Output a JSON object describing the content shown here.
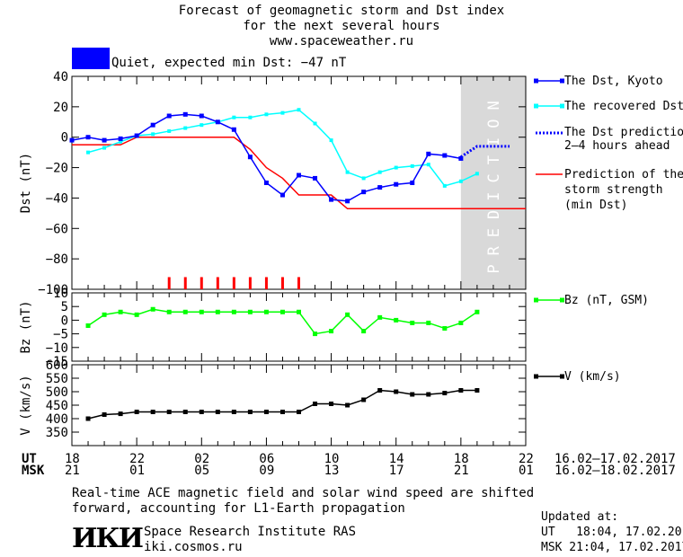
{
  "header": {
    "line1": "Forecast of geomagnetic storm and Dst index",
    "line2": "for the next several hours",
    "line3": "www.spaceweather.ru"
  },
  "status": {
    "text": "Quiet, expected min Dst: −47 nT",
    "color": "#0000FF"
  },
  "prediction_label": "PREDICTION",
  "time_axis": {
    "ut_label": "UT",
    "msk_label": "MSK",
    "ut_ticks": [
      "18",
      "22",
      "02",
      "06",
      "10",
      "14",
      "18",
      "22"
    ],
    "msk_ticks": [
      "21",
      "01",
      "05",
      "09",
      "13",
      "17",
      "21",
      "01"
    ],
    "ut_range": "16.02–17.02.2017",
    "msk_range": "16.02–18.02.2017"
  },
  "legend": {
    "dst_kyoto": "The Dst, Kyoto",
    "dst_recovered": "The recovered Dst",
    "dst_prediction_1": "The Dst prediction",
    "dst_prediction_2": "2–4 hours ahead",
    "storm_1": "Prediction of the",
    "storm_2": "storm strength",
    "storm_3": "(min Dst)",
    "bz": "Bz (nT, GSM)",
    "v": "V (km/s)"
  },
  "footer": {
    "note_1": "Real-time ACE magnetic field and solar wind speed are shifted",
    "note_2": "forward, accounting for L1-Earth propagation",
    "logo": "ИКИ",
    "institute": "Space Research Institute RAS",
    "site": "iki.cosmos.ru",
    "updated_label": "Updated at:",
    "updated_ut": "UT   18:04, 17.02.2017",
    "updated_msk": "MSK 21:04, 17.02.2017"
  },
  "colors": {
    "dst_kyoto": "#0000FF",
    "dst_recovered": "#00FFFF",
    "dst_prediction": "#0000FF",
    "storm": "#FF0000",
    "bz": "#00FF00",
    "v": "#000000",
    "prediction_band": "#D9D9D9"
  },
  "chart_data": [
    {
      "type": "line",
      "ylabel": "Dst (nT)",
      "x_unit": "hours since 18 UT 16.02.2017",
      "xlim": [
        0,
        28
      ],
      "ylim": [
        -100,
        40
      ],
      "yticks": [
        -100,
        -80,
        -60,
        -40,
        -20,
        0,
        20,
        40
      ],
      "prediction_band": [
        24,
        28
      ],
      "series": [
        {
          "name": "The Dst, Kyoto",
          "x": [
            0,
            1,
            2,
            3,
            4,
            5,
            6,
            7,
            8,
            9,
            10,
            11,
            12,
            13,
            14,
            15,
            16,
            17,
            18,
            19,
            20,
            21,
            22,
            23,
            24
          ],
          "y": [
            -2,
            0,
            -2,
            -1,
            1,
            8,
            14,
            15,
            14,
            10,
            5,
            -13,
            -30,
            -38,
            -25,
            -27,
            -41,
            -42,
            -36,
            -33,
            -31,
            -30,
            -11,
            -12,
            -14
          ]
        },
        {
          "name": "The recovered Dst",
          "x": [
            1,
            2,
            3,
            4,
            5,
            6,
            7,
            8,
            9,
            10,
            11,
            12,
            13,
            14,
            15,
            16,
            17,
            18,
            19,
            20,
            21,
            22,
            23,
            24,
            25
          ],
          "y": [
            -10,
            -7,
            -3,
            1,
            2,
            4,
            6,
            8,
            10,
            13,
            13,
            15,
            16,
            18,
            9,
            -2,
            -23,
            -27,
            -23,
            -20,
            -19,
            -18,
            -32,
            -29,
            -24
          ]
        },
        {
          "name": "The Dst prediction 2–4 hours ahead",
          "x": [
            24,
            25,
            26,
            27
          ],
          "y": [
            -13,
            -6,
            -6,
            -6
          ]
        },
        {
          "name": "Prediction of the storm strength (min Dst)",
          "x": [
            0,
            3,
            4,
            5,
            6,
            7,
            8,
            9,
            10,
            11,
            12,
            13,
            14,
            15,
            16,
            17,
            18,
            28
          ],
          "y": [
            -5,
            -5,
            0,
            0,
            0,
            0,
            0,
            0,
            0,
            -8,
            -20,
            -27,
            -38,
            -38,
            -38,
            -47,
            -47,
            -47
          ]
        }
      ],
      "storm_markers_x": [
        6,
        7,
        8,
        9,
        10,
        11,
        12,
        13,
        14
      ]
    },
    {
      "type": "line",
      "ylabel": "Bz (nT)",
      "xlim": [
        0,
        28
      ],
      "ylim": [
        -15,
        10
      ],
      "yticks": [
        -15,
        -10,
        -5,
        0,
        5,
        10
      ],
      "series": [
        {
          "name": "Bz (nT, GSM)",
          "x": [
            1,
            2,
            3,
            4,
            5,
            6,
            7,
            8,
            9,
            10,
            11,
            12,
            13,
            14,
            15,
            16,
            17,
            18,
            19,
            20,
            21,
            22,
            23,
            24,
            25
          ],
          "y": [
            -2,
            2,
            3,
            2,
            4,
            3,
            3,
            3,
            3,
            3,
            3,
            3,
            3,
            3,
            -5,
            -4,
            2,
            -4,
            1,
            0,
            -1,
            -1,
            -3,
            -1,
            3
          ]
        }
      ]
    },
    {
      "type": "line",
      "ylabel": "V (km/s)",
      "xlim": [
        0,
        28
      ],
      "ylim": [
        300,
        600
      ],
      "yticks": [
        350,
        400,
        450,
        500,
        550,
        600
      ],
      "series": [
        {
          "name": "V (km/s)",
          "x": [
            1,
            2,
            3,
            4,
            5,
            6,
            7,
            8,
            9,
            10,
            11,
            12,
            13,
            14,
            15,
            16,
            17,
            18,
            19,
            20,
            21,
            22,
            23,
            24,
            25
          ],
          "y": [
            400,
            415,
            418,
            425,
            425,
            425,
            425,
            425,
            425,
            425,
            425,
            425,
            425,
            425,
            455,
            455,
            450,
            470,
            505,
            500,
            490,
            490,
            495,
            505,
            505
          ]
        }
      ]
    }
  ]
}
